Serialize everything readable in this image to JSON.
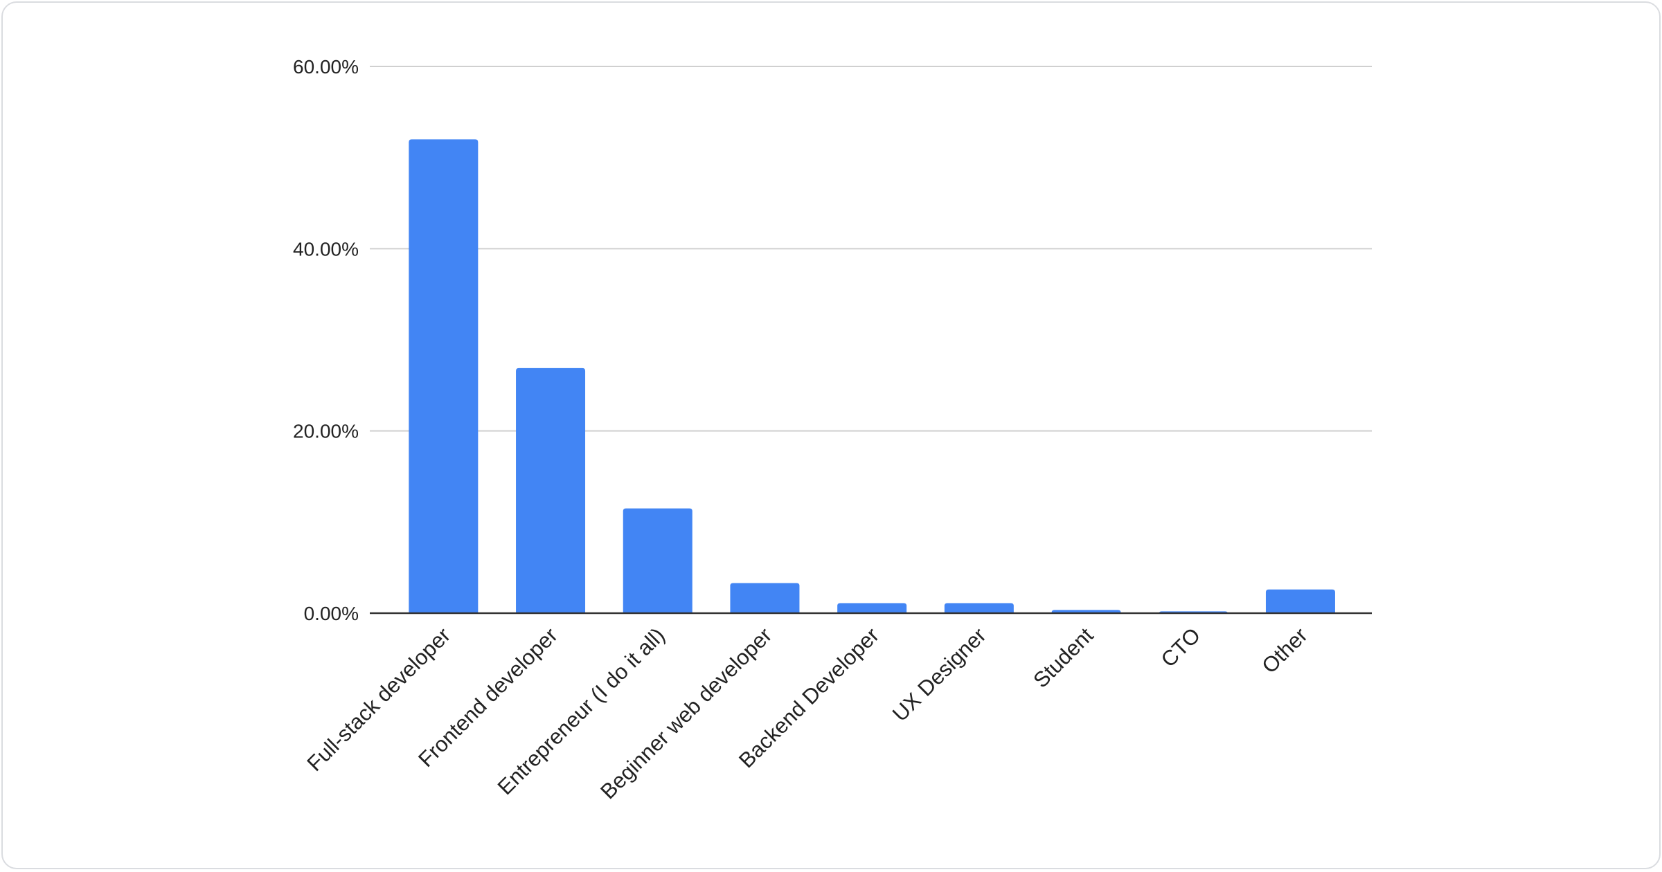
{
  "chart_data": {
    "type": "bar",
    "title": "",
    "xlabel": "",
    "ylabel": "",
    "categories": [
      "Full-stack developer",
      "Frontend developer",
      "Entrepreneur (I do it all)",
      "Beginner web developer",
      "Backend Developer",
      "UX Designer",
      "Student",
      "CTO",
      "Other"
    ],
    "values": [
      52.0,
      26.9,
      11.5,
      3.3,
      1.1,
      1.1,
      0.35,
      0.2,
      2.6
    ],
    "value_unit": "percent",
    "ylim": [
      0,
      60
    ],
    "yticks": [
      0,
      20,
      40,
      60
    ],
    "ytick_labels": [
      "0.00%",
      "20.00%",
      "40.00%",
      "60.00%"
    ],
    "grid": "horizontal",
    "legend": "none",
    "colors": {
      "bar": "#4285f4",
      "grid": "#d0d0d0",
      "axis": "#333333"
    }
  }
}
